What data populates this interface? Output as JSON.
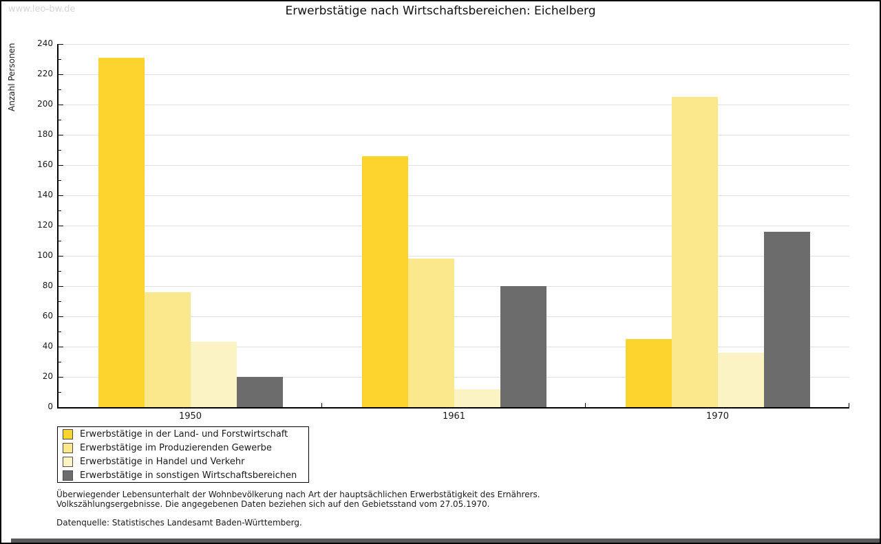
{
  "watermark": "www.leo-bw.de",
  "page_title": "Erwerbstätige nach Wirtschaftsbereichen: Eichelberg",
  "chart_data": {
    "type": "bar",
    "title": "Erwerbstätige nach Wirtschaftsbereichen: Eichelberg",
    "ylabel": "Anzahl Personen",
    "ylim": [
      0,
      240
    ],
    "ytick_step": 20,
    "yminor_step": 10,
    "grid": true,
    "legend_position": "bottom-left",
    "categories": [
      "1950",
      "1961",
      "1970"
    ],
    "series": [
      {
        "name": "Erwerbstätige in der Land- und Forstwirtschaft",
        "color": "#fcd42d",
        "values": [
          231,
          166,
          45
        ]
      },
      {
        "name": "Erwerbstätige im Produzierenden Gewerbe",
        "color": "#fbe88c",
        "values": [
          76,
          98,
          205
        ]
      },
      {
        "name": "Erwerbstätige in Handel und Verkehr",
        "color": "#fcf3c4",
        "values": [
          43,
          12,
          36
        ]
      },
      {
        "name": "Erwerbstätige in sonstigen Wirtschaftsbereichen",
        "color": "#6c6c6c",
        "values": [
          20,
          80,
          116
        ]
      }
    ]
  },
  "footnote": {
    "line1": "Überwiegender Lebensunterhalt der Wohnbevölkerung nach Art der hauptsächlichen Erwerbstätigkeit des Ernährers.",
    "line2": "Volkszählungsergebnisse. Die angegebenen Daten beziehen sich auf den Gebietsstand vom 27.05.1970.",
    "source": "Datenquelle: Statistisches Landesamt Baden-Württemberg."
  },
  "colors": {
    "grid": "#e0e0e0",
    "axis": "#000000",
    "text": "#1a1a1a",
    "watermark": "#d6d6d6",
    "swatch_border": "#4d4d4d",
    "bottom_bar": "#58585a"
  }
}
